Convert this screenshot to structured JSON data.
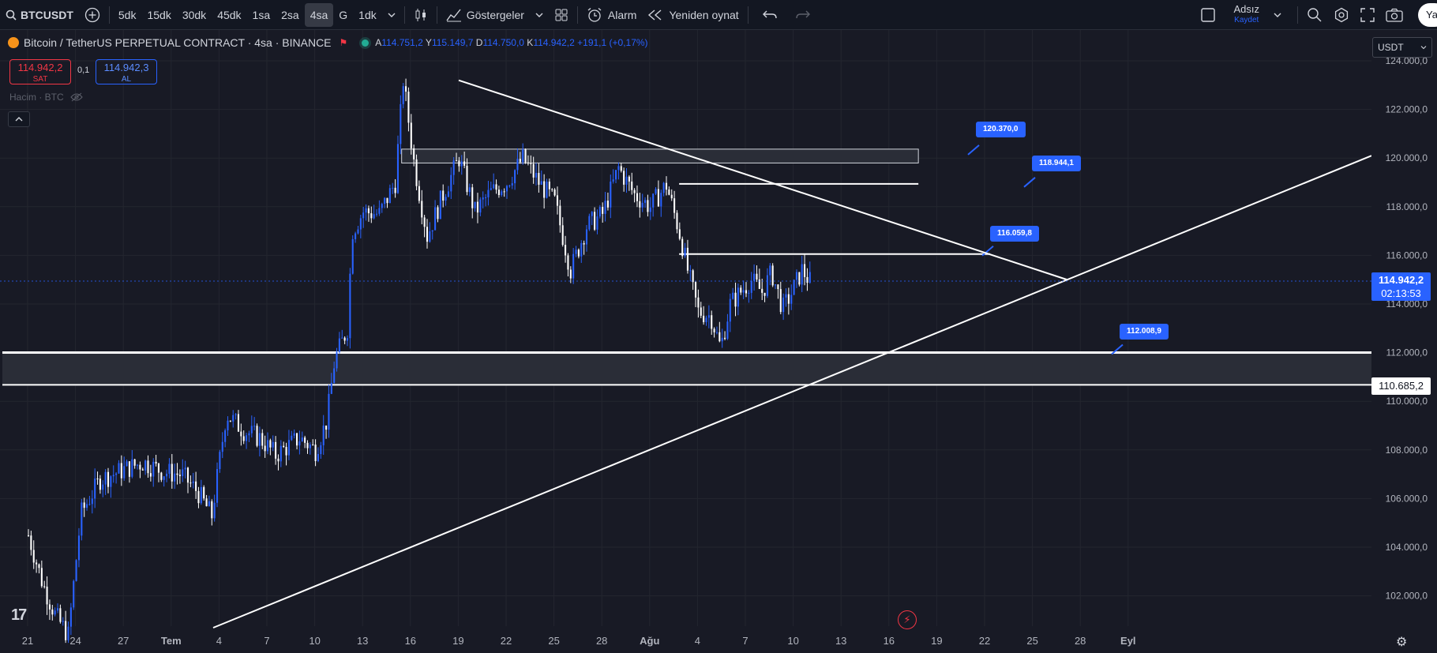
{
  "toolbar": {
    "symbol": "BTCUSDT",
    "intervals": [
      "5dk",
      "15dk",
      "30dk",
      "45dk",
      "1sa",
      "2sa",
      "4sa",
      "G",
      "1dk"
    ],
    "active_interval": "4sa",
    "indicators_label": "Göstergeler",
    "alarm_label": "Alarm",
    "replay_label": "Yeniden oynat",
    "layout_name": "Adsız",
    "save_label": "Kaydet",
    "share_label": "Ya"
  },
  "legend": {
    "title": "Bitcoin / TetherUS PERPETUAL CONTRACT · 4sa · BINANCE",
    "open_key": "A",
    "open": "114.751,2",
    "high_key": "Y",
    "high": "115.149,7",
    "low_key": "D",
    "low": "114.750,0",
    "close_key": "K",
    "close": "114.942,2",
    "change": "+191,1 (+0,17%)"
  },
  "trade": {
    "sell_price": "114.942,2",
    "sell_label": "SAT",
    "spread": "0,1",
    "buy_price": "114.942,3",
    "buy_label": "AL"
  },
  "volume_label": "Hacim · BTC",
  "currency": "USDT",
  "current_price": {
    "price": "114.942,2",
    "countdown": "02:13:53"
  },
  "level_label": "110.685,2",
  "alert_labels": [
    "120.370,0",
    "118.944,1",
    "116.059,8",
    "112.008,9"
  ],
  "price_axis": [
    "124.000,0",
    "122.000,0",
    "120.000,0",
    "118.000,0",
    "116.000,0",
    "114.000,0",
    "112.000,0",
    "110.000,0",
    "108.000,0",
    "106.000,0",
    "104.000,0",
    "102.000,0"
  ],
  "time_axis": [
    "21",
    "24",
    "27",
    "Tem",
    "4",
    "7",
    "10",
    "13",
    "16",
    "19",
    "22",
    "25",
    "28",
    "Ağu",
    "4",
    "7",
    "10",
    "13",
    "16",
    "19",
    "22",
    "25",
    "28",
    "Eyl"
  ],
  "colors": {
    "background": "#181a25",
    "accent": "#2962ff",
    "bear": "#ffffff",
    "bull": "#2962ff",
    "sell": "#f23645"
  },
  "chart_data": {
    "type": "candlestick",
    "price_points": [
      {
        "t": "21 Haz",
        "p": 104500
      },
      {
        "t": "23 Haz",
        "p": 101200
      },
      {
        "t": "24 Haz",
        "p": 100400
      },
      {
        "t": "25 Haz",
        "p": 105400
      },
      {
        "t": "27 Haz",
        "p": 107200
      },
      {
        "t": "29 Haz",
        "p": 107000
      },
      {
        "t": "1 Tem",
        "p": 106300
      },
      {
        "t": "2 Tem",
        "p": 105300
      },
      {
        "t": "3 Tem",
        "p": 109500
      },
      {
        "t": "5 Tem",
        "p": 108500
      },
      {
        "t": "6 Tem",
        "p": 107800
      },
      {
        "t": "8 Tem",
        "p": 108500
      },
      {
        "t": "9 Tem",
        "p": 108000
      },
      {
        "t": "10 Tem",
        "p": 111700
      },
      {
        "t": "11 Tem",
        "p": 117800
      },
      {
        "t": "12 Tem",
        "p": 117700
      },
      {
        "t": "14 Tem",
        "p": 123200
      },
      {
        "t": "14 Tem",
        "p": 119700
      },
      {
        "t": "15 Tem",
        "p": 116800
      },
      {
        "t": "17 Tem",
        "p": 118500
      },
      {
        "t": "18 Tem",
        "p": 120000
      },
      {
        "t": "19 Tem",
        "p": 117800
      },
      {
        "t": "22 Tem",
        "p": 120000
      },
      {
        "t": "24 Tem",
        "p": 118200
      },
      {
        "t": "25 Tem",
        "p": 115400
      },
      {
        "t": "26 Tem",
        "p": 117700
      },
      {
        "t": "28 Tem",
        "p": 119600
      },
      {
        "t": "30 Tem",
        "p": 118000
      },
      {
        "t": "31 Tem",
        "p": 118900
      },
      {
        "t": "1 Ağu",
        "p": 115200
      },
      {
        "t": "2 Ağu",
        "p": 113500
      },
      {
        "t": "3 Ağu",
        "p": 112200
      },
      {
        "t": "4 Ağu",
        "p": 114500
      },
      {
        "t": "5 Ağu",
        "p": 115300
      },
      {
        "t": "6 Ağu",
        "p": 113800
      },
      {
        "t": "7 Ağu",
        "p": 115400
      },
      {
        "t": "8 Ağu",
        "p": 114942
      }
    ],
    "horizontal_levels": [
      120370.0,
      119800,
      118944.1,
      116059.8,
      112008.9,
      110685.2
    ],
    "support_zone": [
      110685.2,
      112008.9
    ],
    "trendlines": [
      {
        "name": "descending",
        "from": {
          "t": "14 Tem",
          "p": 123200
        },
        "to": {
          "t": "16 Ağu",
          "p": 115000
        }
      },
      {
        "name": "ascending",
        "from": {
          "t": "1 Tem",
          "p": 100400
        },
        "to": {
          "t": "1 Eyl",
          "p": 120100
        }
      }
    ]
  }
}
